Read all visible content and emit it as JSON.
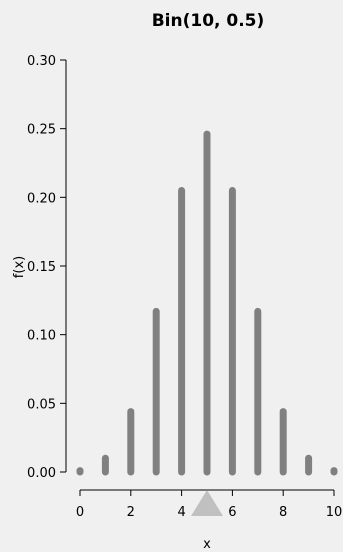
{
  "chart_data": {
    "type": "bar",
    "title": "Bin(10, 0.5)",
    "xlabel": "x",
    "ylabel": "f(x)",
    "x": [
      0,
      1,
      2,
      3,
      4,
      5,
      6,
      7,
      8,
      9,
      10
    ],
    "values": [
      0.001,
      0.01,
      0.044,
      0.117,
      0.205,
      0.246,
      0.205,
      0.117,
      0.044,
      0.01,
      0.001
    ],
    "xlim": [
      0,
      10
    ],
    "ylim": [
      0,
      0.3
    ],
    "xticks": [
      "0",
      "2",
      "4",
      "6",
      "8",
      "10"
    ],
    "yticks": [
      "0.00",
      "0.05",
      "0.10",
      "0.15",
      "0.20",
      "0.25",
      "0.30"
    ],
    "mean_marker_x": 5,
    "bar_color": "#808080",
    "marker_color": "#c0c0c0",
    "background": "#f0f0f0",
    "grid": false
  }
}
